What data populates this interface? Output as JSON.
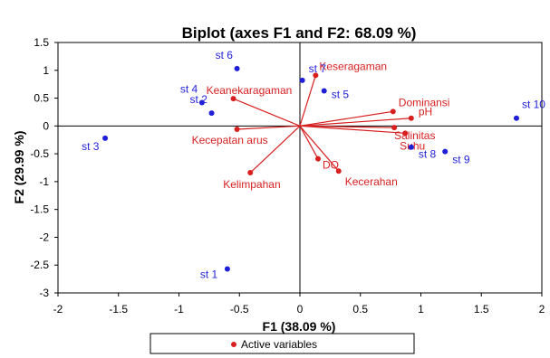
{
  "chart_data": {
    "type": "scatter",
    "title": "Biplot (axes F1 and F2: 68.09 %)",
    "xlabel": "F1 (38.09 %)",
    "ylabel": "F2 (29.99 %)",
    "xlim": [
      -2,
      2
    ],
    "ylim": [
      -3,
      1.5
    ],
    "x_ticks": [
      "-2",
      "-1.5",
      "-1",
      "-0.5",
      "0",
      "0.5",
      "1",
      "1.5",
      "2"
    ],
    "y_ticks": [
      "1.5",
      "1",
      "0.5",
      "0",
      "-0.5",
      "-1",
      "-1.5",
      "-2",
      "-2.5",
      "-3"
    ],
    "observations": [
      {
        "label": "st 1",
        "x": -0.6,
        "y": -2.57
      },
      {
        "label": "st 2",
        "x": -0.73,
        "y": 0.23
      },
      {
        "label": "st 3",
        "x": -1.61,
        "y": -0.22
      },
      {
        "label": "st 4",
        "x": -0.81,
        "y": 0.42
      },
      {
        "label": "st 5",
        "x": 0.2,
        "y": 0.63
      },
      {
        "label": "st 6",
        "x": -0.52,
        "y": 1.03
      },
      {
        "label": "st 7",
        "x": 0.02,
        "y": 0.82
      },
      {
        "label": "st 8",
        "x": 0.92,
        "y": -0.38
      },
      {
        "label": "st 9",
        "x": 1.2,
        "y": -0.46
      },
      {
        "label": "st 10",
        "x": 1.79,
        "y": 0.14
      }
    ],
    "variables": [
      {
        "label": "Keseragaman",
        "x": 0.13,
        "y": 0.91
      },
      {
        "label": "Keanekaragaman",
        "x": -0.55,
        "y": 0.49
      },
      {
        "label": "Dominansi",
        "x": 0.77,
        "y": 0.26
      },
      {
        "label": "pH",
        "x": 0.92,
        "y": 0.14
      },
      {
        "label": "Salinitas",
        "x": 0.78,
        "y": -0.03
      },
      {
        "label": "Suhu",
        "x": 0.87,
        "y": -0.13
      },
      {
        "label": "Kecepatan arus",
        "x": -0.52,
        "y": -0.06
      },
      {
        "label": "DO",
        "x": 0.15,
        "y": -0.59
      },
      {
        "label": "Kecerahan",
        "x": 0.32,
        "y": -0.81
      },
      {
        "label": "Kelimpahan",
        "x": -0.41,
        "y": -0.84
      }
    ],
    "legend": {
      "label": "Active variables",
      "placement": "bottom"
    },
    "colors": {
      "observations": "#1f1fd8",
      "variables": "#d81f1f",
      "axes": "#000000"
    }
  }
}
